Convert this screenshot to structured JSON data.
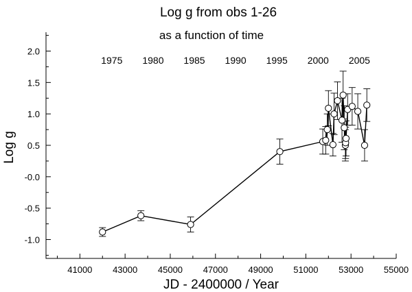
{
  "chart_data": {
    "type": "scatter",
    "title": "Log g  from obs 1-26",
    "subtitle": "as a function of time",
    "xlabel": "JD - 2400000 /  Year",
    "ylabel": "Log g",
    "xlim": [
      39500,
      55000
    ],
    "ylim": [
      -1.3,
      2.3
    ],
    "x_ticks": [
      41000,
      43000,
      45000,
      47000,
      49000,
      51000,
      53000,
      55000
    ],
    "x_tick_labels": [
      "41000",
      "43000",
      "45000",
      "47000",
      "49000",
      "51000",
      "53000",
      "55000"
    ],
    "y_ticks": [
      2.0,
      1.5,
      1.0,
      0.5,
      0.0,
      -0.5,
      -1.0
    ],
    "y_tick_labels": [
      "2.0",
      "1.5",
      "1.0",
      "0.5",
      "-0.0",
      "-0.5",
      "-1.0"
    ],
    "year_labels": [
      {
        "label": "1975",
        "jd": 42412
      },
      {
        "label": "1980",
        "jd": 44239
      },
      {
        "label": "1985",
        "jd": 46065
      },
      {
        "label": "1990",
        "jd": 47892
      },
      {
        "label": "1995",
        "jd": 49718
      },
      {
        "label": "2000",
        "jd": 51544
      },
      {
        "label": "2005",
        "jd": 53371
      }
    ],
    "grid": false,
    "legend": "none",
    "series": [
      {
        "points": [
          {
            "x": 42000,
            "y": -0.88,
            "err": 0.07
          },
          {
            "x": 43700,
            "y": -0.62,
            "err": 0.08
          },
          {
            "x": 45900,
            "y": -0.76,
            "err": 0.12
          },
          {
            "x": 49850,
            "y": 0.4,
            "err": 0.2
          },
          {
            "x": 51750,
            "y": 0.56,
            "err": 0.2
          },
          {
            "x": 51880,
            "y": 0.58,
            "err": 0.22
          },
          {
            "x": 51950,
            "y": 0.75,
            "err": 0.25
          },
          {
            "x": 52000,
            "y": 1.09,
            "err": 0.28
          },
          {
            "x": 52200,
            "y": 0.51,
            "err": 0.18
          },
          {
            "x": 52250,
            "y": 1.0,
            "err": 0.33
          },
          {
            "x": 52400,
            "y": 1.21,
            "err": 0.3
          },
          {
            "x": 52600,
            "y": 0.9,
            "err": 0.35
          },
          {
            "x": 52650,
            "y": 1.3,
            "err": 0.38
          },
          {
            "x": 52700,
            "y": 0.78,
            "err": 0.35
          },
          {
            "x": 52750,
            "y": 0.5,
            "err": 0.25
          },
          {
            "x": 52760,
            "y": 0.54,
            "err": 0.25
          },
          {
            "x": 52780,
            "y": 0.61,
            "err": 0.28
          },
          {
            "x": 52850,
            "y": 1.07,
            "err": 0.25
          },
          {
            "x": 53050,
            "y": 1.12,
            "err": 0.3
          },
          {
            "x": 53300,
            "y": 1.04,
            "err": 0.28
          },
          {
            "x": 53600,
            "y": 0.5,
            "err": 0.25
          },
          {
            "x": 53700,
            "y": 1.14,
            "err": 0.26
          }
        ]
      }
    ]
  }
}
